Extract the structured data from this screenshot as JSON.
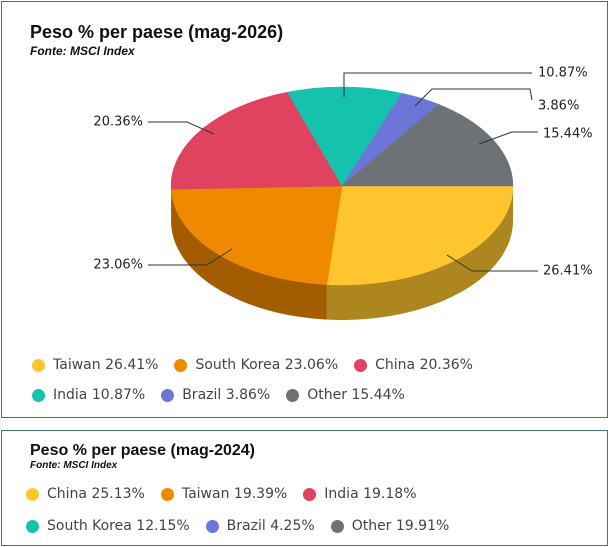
{
  "chart_data": [
    {
      "type": "pie",
      "title": "Peso % per paese (mag-2026)",
      "subtitle": "Fonte: MSCI Index",
      "categories": [
        "Taiwan",
        "South Korea",
        "China",
        "India",
        "Brazil",
        "Other"
      ],
      "values": [
        26.41,
        23.06,
        20.36,
        10.87,
        3.86,
        15.44
      ],
      "value_labels": [
        "26.41%",
        "23.06%",
        "20.36%",
        "10.87%",
        "3.86%",
        "15.44%"
      ],
      "colors": [
        "#ffc52e",
        "#ef8900",
        "#e0435f",
        "#14c2ae",
        "#6b76d6",
        "#6c7276"
      ],
      "legend": "bottom"
    },
    {
      "type": "legend",
      "title": "Peso % per paese (mag-2024)",
      "subtitle": "Fonte: MSCI Index",
      "categories": [
        "China",
        "Taiwan",
        "India",
        "South Korea",
        "Brazil",
        "Other"
      ],
      "values": [
        25.13,
        19.39,
        19.18,
        12.15,
        4.25,
        19.91
      ],
      "value_labels": [
        "25.13%",
        "19.39%",
        "19.18%",
        "12.15%",
        "4.25%",
        "19.91%"
      ],
      "colors": [
        "#ffc52e",
        "#ef8900",
        "#e0435f",
        "#14c2ae",
        "#6b76d6",
        "#6c7276"
      ],
      "legend": "bottom"
    }
  ]
}
